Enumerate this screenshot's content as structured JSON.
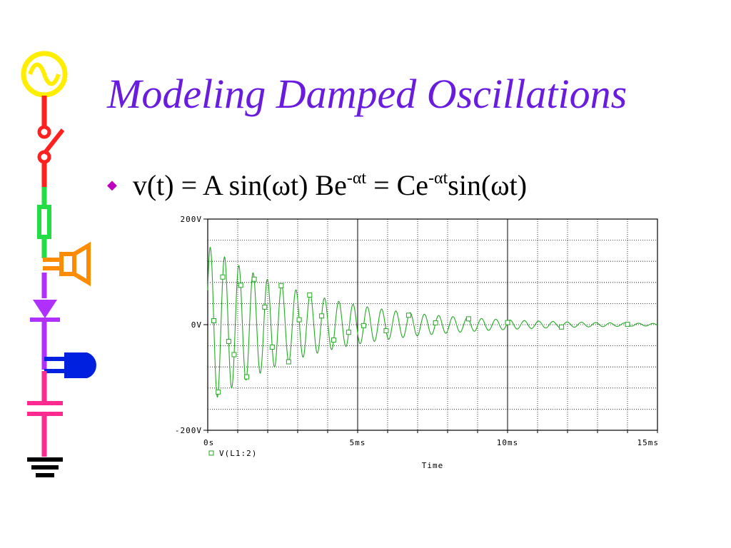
{
  "slide": {
    "title": "Modeling Damped Oscillations",
    "bullet": {
      "marker": "◆",
      "part1": "v(t) = A sin(ωt) Be",
      "sup1": "-αt",
      "part2": " = Ce",
      "sup2": "-αt",
      "part3": "sin(ωt)"
    }
  },
  "decoration": {
    "icons": [
      "ac-source-icon",
      "switch-icon",
      "resistor-icon",
      "speaker-icon",
      "diode-icon",
      "lamp-icon",
      "capacitor-icon",
      "ground-icon"
    ],
    "colors": {
      "ac_source": "#ffee00",
      "switch": "#ff2020",
      "resistor": "#22dd44",
      "speaker": "#ff8c00",
      "diode": "#b030ff",
      "lamp": "#0020e0",
      "capacitor": "#ff2a90",
      "ground": "#000000"
    }
  },
  "chart_data": {
    "type": "line",
    "xlabel": "Time",
    "ylabel": "",
    "xlim": [
      0,
      15
    ],
    "ylim": [
      -200,
      200
    ],
    "x_unit": "ms",
    "y_unit": "V",
    "x_ticks": [
      {
        "value": 0,
        "label": "0s"
      },
      {
        "value": 5,
        "label": "5ms"
      },
      {
        "value": 10,
        "label": "10ms"
      },
      {
        "value": 15,
        "label": "15ms"
      }
    ],
    "y_ticks": [
      {
        "value": 200,
        "label": "200V"
      },
      {
        "value": 0,
        "label": "0V"
      },
      {
        "value": -200,
        "label": "-200V"
      }
    ],
    "grid": true,
    "legend": {
      "position": "bottom-left",
      "entries": [
        "V(L1:2)"
      ]
    },
    "series": [
      {
        "name": "V(L1:2)",
        "color": "#22aa22",
        "amplitude": 150,
        "decay_per_ms": 0.28,
        "frequency_khz": 2.1,
        "x_start": 0,
        "x_end": 15,
        "marker_times": [
          0.2,
          0.35,
          0.5,
          0.7,
          0.88,
          1.1,
          1.3,
          1.55,
          1.9,
          2.15,
          2.45,
          2.7,
          3.05,
          3.4,
          3.8,
          4.2,
          4.7,
          5.2,
          5.95,
          6.7,
          7.6,
          8.7,
          10.0,
          11.8,
          14.0
        ]
      }
    ]
  }
}
